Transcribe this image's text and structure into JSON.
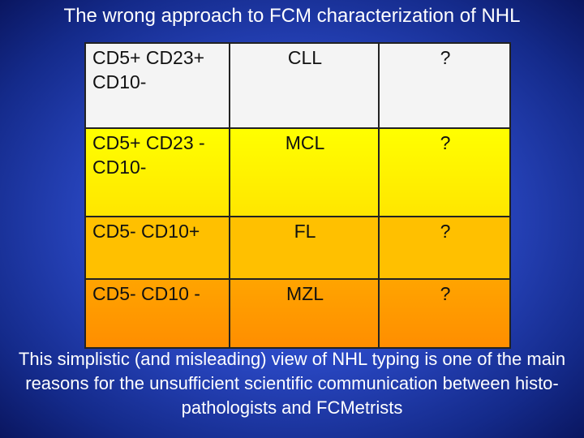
{
  "header": {
    "title": "The wrong approach to FCM characterization of NHL"
  },
  "table": {
    "rows": [
      [
        "CD5+ CD23+ CD10-",
        "CLL",
        "?"
      ],
      [
        "CD5+ CD23 - CD10-",
        "MCL",
        "?"
      ],
      [
        "CD5- CD10+",
        "FL",
        "?"
      ],
      [
        "CD5- CD10 -",
        "MZL",
        "?"
      ]
    ]
  },
  "footer": {
    "text": "This simplistic (and misleading) view of NHL typing is one of the main reasons for the unsufficient scientific communication between histo-pathologists and FCMetrists"
  }
}
